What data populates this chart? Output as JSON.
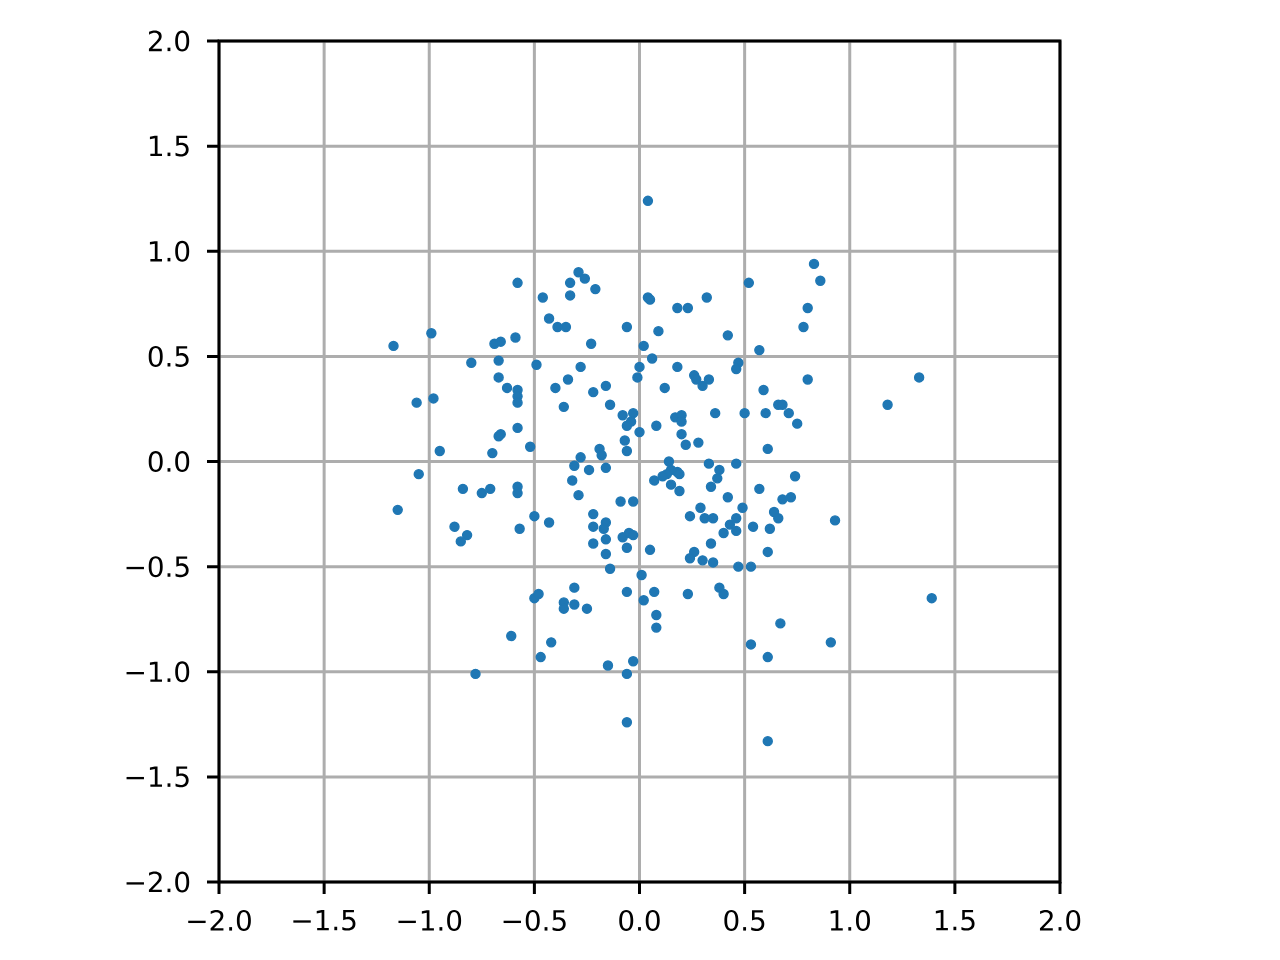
{
  "chart_data": {
    "type": "scatter",
    "marker": "circle",
    "grid": true,
    "xlim": [
      -2,
      2
    ],
    "ylim": [
      -2,
      2
    ],
    "xticks": [
      {
        "value": -2,
        "label": "−2.0"
      },
      {
        "value": -1.5,
        "label": "−1.5"
      },
      {
        "value": -1,
        "label": "−1.0"
      },
      {
        "value": -0.5,
        "label": "−0.5"
      },
      {
        "value": 0,
        "label": "0.0"
      },
      {
        "value": 0.5,
        "label": "0.5"
      },
      {
        "value": 1,
        "label": "1.0"
      },
      {
        "value": 1.5,
        "label": "1.5"
      },
      {
        "value": 2,
        "label": "2.0"
      }
    ],
    "yticks": [
      {
        "value": -2,
        "label": "−2.0"
      },
      {
        "value": -1.5,
        "label": "−1.5"
      },
      {
        "value": -1,
        "label": "−1.0"
      },
      {
        "value": -0.5,
        "label": "−0.5"
      },
      {
        "value": 0,
        "label": "0.0"
      },
      {
        "value": 0.5,
        "label": "0.5"
      },
      {
        "value": 1,
        "label": "1.0"
      },
      {
        "value": 1.5,
        "label": "1.5"
      },
      {
        "value": 2,
        "label": "2.0"
      }
    ],
    "series": [
      {
        "color": "#1f77b4",
        "x": [
          0.04,
          0.83,
          0.86,
          0.8,
          0.78,
          0.8,
          0.52,
          -0.29,
          -0.26,
          -0.33,
          -0.21,
          -0.33,
          -0.58,
          -0.46,
          0.04,
          0.05,
          0.32,
          0.18,
          0.23,
          -0.43,
          -0.39,
          -0.35,
          -0.06,
          0.09,
          0.42,
          -1.17,
          -0.99,
          -0.69,
          -0.66,
          -0.59,
          -0.23,
          0.02,
          0.57,
          -0.8,
          -0.67,
          -0.49,
          -0.28,
          0.0,
          0.06,
          0.18,
          0.47,
          0.46,
          -0.67,
          -0.63,
          -0.58,
          -0.58,
          -0.58,
          -0.4,
          -0.34,
          -0.22,
          -0.16,
          -0.01,
          0.12,
          0.26,
          0.27,
          0.3,
          0.33,
          0.59,
          1.33,
          -1.06,
          -0.98,
          -0.36,
          -0.14,
          -0.08,
          -0.03,
          -0.04,
          -0.06,
          0.17,
          0.2,
          0.2,
          0.36,
          0.5,
          0.6,
          0.66,
          0.68,
          0.71,
          0.75,
          1.18,
          -0.58,
          -0.66,
          -0.67,
          -0.07,
          0.0,
          0.08,
          0.2,
          0.22,
          0.28,
          -0.95,
          -0.52,
          -0.19,
          -0.06,
          -0.18,
          -0.28,
          0.61,
          -0.7,
          -0.31,
          -0.24,
          -0.16,
          0.14,
          0.15,
          0.13,
          0.18,
          0.19,
          0.33,
          0.38,
          0.46,
          0.74,
          -1.05,
          0.07,
          0.11,
          0.15,
          0.19,
          0.34,
          0.37,
          -0.32,
          -0.29,
          -0.58,
          -0.58,
          -0.75,
          -0.71,
          -0.84,
          -1.15,
          0.42,
          0.57,
          0.68,
          0.72,
          -0.09,
          -0.03,
          -0.22,
          -0.22,
          -0.16,
          -0.17,
          -0.5,
          -0.43,
          -0.57,
          -0.88,
          -0.82,
          -0.85,
          0.24,
          0.29,
          0.31,
          0.35,
          0.43,
          0.46,
          0.49,
          0.54,
          0.64,
          0.66,
          0.93,
          0.62,
          -0.08,
          -0.05,
          -0.03,
          -0.06,
          -0.16,
          -0.22,
          -0.16,
          0.34,
          0.4,
          0.46,
          0.05,
          0.26,
          0.24,
          0.3,
          0.35,
          0.47,
          0.53,
          0.61,
          -0.14,
          0.01,
          -0.06,
          0.07,
          0.23,
          0.38,
          0.4,
          0.02,
          -0.31,
          -0.25,
          -0.31,
          -0.36,
          -0.36,
          -0.5,
          -0.48,
          1.39,
          0.08,
          0.08,
          0.67,
          -0.61,
          -0.42,
          0.53,
          0.91,
          -0.47,
          -0.15,
          -0.03,
          0.61,
          -0.06,
          -0.78,
          -0.06,
          0.61
        ],
        "values": [
          1.24,
          0.94,
          0.86,
          0.73,
          0.64,
          0.39,
          0.85,
          0.9,
          0.87,
          0.85,
          0.82,
          0.79,
          0.85,
          0.78,
          0.78,
          0.77,
          0.78,
          0.73,
          0.73,
          0.68,
          0.64,
          0.64,
          0.64,
          0.62,
          0.6,
          0.55,
          0.61,
          0.56,
          0.57,
          0.59,
          0.56,
          0.55,
          0.53,
          0.47,
          0.48,
          0.46,
          0.45,
          0.45,
          0.49,
          0.45,
          0.47,
          0.44,
          0.4,
          0.35,
          0.34,
          0.31,
          0.28,
          0.35,
          0.39,
          0.33,
          0.36,
          0.4,
          0.35,
          0.41,
          0.39,
          0.36,
          0.39,
          0.34,
          0.4,
          0.28,
          0.3,
          0.26,
          0.27,
          0.22,
          0.23,
          0.19,
          0.17,
          0.21,
          0.22,
          0.19,
          0.23,
          0.23,
          0.23,
          0.27,
          0.27,
          0.23,
          0.18,
          0.27,
          0.16,
          0.13,
          0.12,
          0.1,
          0.14,
          0.17,
          0.13,
          0.08,
          0.09,
          0.05,
          0.07,
          0.06,
          0.05,
          0.03,
          0.02,
          0.06,
          0.04,
          -0.02,
          -0.04,
          -0.03,
          0.0,
          -0.04,
          -0.06,
          -0.05,
          -0.06,
          -0.01,
          -0.04,
          -0.01,
          -0.07,
          -0.06,
          -0.09,
          -0.07,
          -0.11,
          -0.14,
          -0.12,
          -0.08,
          -0.09,
          -0.16,
          -0.12,
          -0.15,
          -0.15,
          -0.13,
          -0.13,
          -0.23,
          -0.17,
          -0.13,
          -0.18,
          -0.17,
          -0.19,
          -0.19,
          -0.25,
          -0.31,
          -0.29,
          -0.32,
          -0.26,
          -0.29,
          -0.32,
          -0.31,
          -0.35,
          -0.38,
          -0.26,
          -0.22,
          -0.27,
          -0.27,
          -0.3,
          -0.27,
          -0.22,
          -0.31,
          -0.24,
          -0.27,
          -0.28,
          -0.32,
          -0.36,
          -0.34,
          -0.35,
          -0.41,
          -0.37,
          -0.39,
          -0.44,
          -0.39,
          -0.34,
          -0.33,
          -0.42,
          -0.43,
          -0.46,
          -0.47,
          -0.48,
          -0.5,
          -0.5,
          -0.43,
          -0.51,
          -0.54,
          -0.62,
          -0.62,
          -0.63,
          -0.6,
          -0.63,
          -0.66,
          -0.6,
          -0.7,
          -0.68,
          -0.67,
          -0.7,
          -0.65,
          -0.63,
          -0.65,
          -0.73,
          -0.79,
          -0.77,
          -0.83,
          -0.86,
          -0.87,
          -0.86,
          -0.93,
          -0.97,
          -0.95,
          -0.93,
          -1.01,
          -1.01,
          -1.24,
          -1.33
        ]
      }
    ]
  }
}
